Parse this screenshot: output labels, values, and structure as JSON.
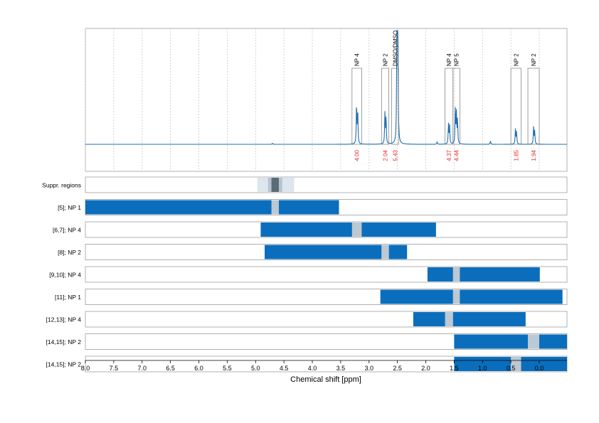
{
  "chart_data": {
    "type": "area",
    "xlabel": "Chemical shift [ppm]",
    "x_axis": {
      "range": [
        8.0,
        -0.5
      ],
      "reversed": true,
      "ticks": [
        "8.0",
        "7.5",
        "7.0",
        "6.5",
        "6.0",
        "5.5",
        "5.0",
        "4.5",
        "4.0",
        "3.5",
        "3.0",
        "2.5",
        "2.0",
        "1.5",
        "1.0",
        "0.5",
        "0.0"
      ]
    },
    "grid": "vertical dotted",
    "colors": {
      "spectrum": "#1f6fb0",
      "bar": "#0a6ebd",
      "gap": "#bcc8d2",
      "integral": "#e8302a",
      "suppr_outer": "#dde5ee",
      "suppr_mid": "#b7c3cf",
      "suppr_inner": "#5a6b78"
    },
    "spectrum_peaks": [
      {
        "ppm": 3.22,
        "height": 0.36
      },
      {
        "ppm": 3.2,
        "height": 0.3
      },
      {
        "ppm": 2.72,
        "height": 0.28
      },
      {
        "ppm": 2.7,
        "height": 0.24
      },
      {
        "ppm": 2.51,
        "height": 0.68
      },
      {
        "ppm": 2.5,
        "height": 0.95
      },
      {
        "ppm": 2.49,
        "height": 0.65
      },
      {
        "ppm": 1.6,
        "height": 0.18
      },
      {
        "ppm": 1.58,
        "height": 0.16
      },
      {
        "ppm": 1.48,
        "height": 0.3
      },
      {
        "ppm": 1.46,
        "height": 0.27
      },
      {
        "ppm": 1.44,
        "height": 0.22
      },
      {
        "ppm": 1.8,
        "height": 0.02
      },
      {
        "ppm": 0.86,
        "height": 0.03
      },
      {
        "ppm": 0.42,
        "height": 0.13
      },
      {
        "ppm": 0.4,
        "height": 0.11
      },
      {
        "ppm": 0.1,
        "height": 0.15
      },
      {
        "ppm": 0.08,
        "height": 0.12
      },
      {
        "ppm": 4.7,
        "height": 0.01
      }
    ],
    "peak_boxes": [
      {
        "label": "NP 4",
        "from": 3.3,
        "to": 3.13,
        "integral": "4.00"
      },
      {
        "label": "NP 2",
        "from": 2.78,
        "to": 2.65,
        "integral": "2.04"
      },
      {
        "label": "DMSO/DMSO",
        "from": 2.6,
        "to": 2.48,
        "integral": "5.43"
      },
      {
        "label": "NP 4",
        "from": 1.66,
        "to": 1.52,
        "integral": "4.37"
      },
      {
        "label": "NP 5",
        "from": 1.52,
        "to": 1.4,
        "integral": "4.44"
      },
      {
        "label": "NP 2",
        "from": 0.5,
        "to": 0.32,
        "integral": "1.85"
      },
      {
        "label": "NP 2",
        "from": 0.2,
        "to": 0.0,
        "integral": "1.94"
      }
    ],
    "suppressed_regions": [
      {
        "from": 4.97,
        "to": 4.32,
        "level": "outer"
      },
      {
        "from": 4.78,
        "to": 4.53,
        "level": "mid"
      },
      {
        "from": 4.72,
        "to": 4.59,
        "level": "inner"
      }
    ],
    "rows": [
      {
        "label": "Suppr. regions",
        "segments": []
      },
      {
        "label": "[5]; NP 1",
        "segments": [
          {
            "from": 8.0,
            "to": 4.72
          },
          {
            "from": 4.59,
            "to": 3.53
          }
        ]
      },
      {
        "label": "[6,7]; NP 4",
        "segments": [
          {
            "from": 4.91,
            "to": 3.3
          },
          {
            "from": 3.13,
            "to": 1.82
          }
        ]
      },
      {
        "label": "[8]; NP 2",
        "segments": [
          {
            "from": 4.84,
            "to": 2.78
          },
          {
            "from": 2.65,
            "to": 2.33
          }
        ]
      },
      {
        "label": "[9,10]; NP 4",
        "segments": [
          {
            "from": 1.97,
            "to": 1.52
          },
          {
            "from": 1.4,
            "to": -0.01
          }
        ]
      },
      {
        "label": "[11]; NP 1",
        "segments": [
          {
            "from": 2.8,
            "to": 1.52
          },
          {
            "from": 1.4,
            "to": -0.41
          }
        ]
      },
      {
        "label": "[12,13]; NP 4",
        "segments": [
          {
            "from": 2.22,
            "to": 1.66
          },
          {
            "from": 1.52,
            "to": 0.24
          }
        ]
      },
      {
        "label": "[14,15]; NP 2",
        "segments": [
          {
            "from": 1.5,
            "to": 0.2
          },
          {
            "from": 0.0,
            "to": -0.5
          }
        ]
      },
      {
        "label": "[14,15]; NP 2",
        "segments": [
          {
            "from": 1.5,
            "to": 0.5
          },
          {
            "from": 0.32,
            "to": -0.5
          }
        ]
      }
    ]
  }
}
